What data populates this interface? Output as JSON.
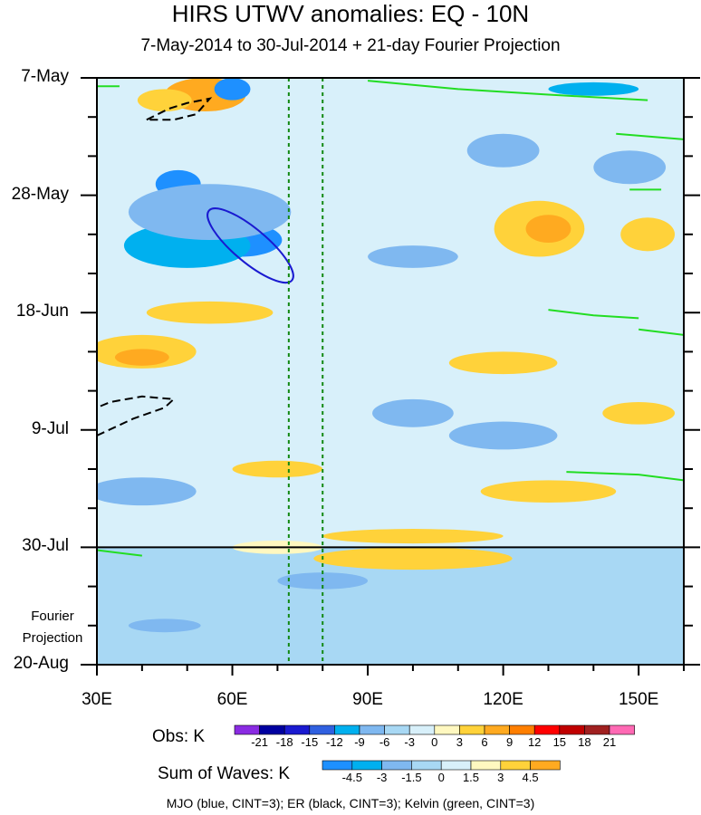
{
  "chart_data": {
    "type": "heatmap",
    "title": "HIRS UTWV anomalies: EQ - 10N",
    "subtitle": "7-May-2014 to 30-Jul-2014 + 21-day Fourier Projection",
    "x_ticks": [
      {
        "value": 30,
        "label": "30E"
      },
      {
        "value": 60,
        "label": "60E"
      },
      {
        "value": 90,
        "label": "90E"
      },
      {
        "value": 120,
        "label": "120E"
      },
      {
        "value": 150,
        "label": "150E"
      }
    ],
    "xlim": [
      30,
      160
    ],
    "y_ticks": [
      {
        "day": 0,
        "label": "7-May"
      },
      {
        "day": 21,
        "label": "28-May"
      },
      {
        "day": 42,
        "label": "18-Jun"
      },
      {
        "day": 63,
        "label": "9-Jul"
      },
      {
        "day": 84,
        "label": "30-Jul"
      },
      {
        "day": 105,
        "label": "20-Aug"
      }
    ],
    "ylim_days": [
      0,
      105
    ],
    "observation_end_day": 84,
    "fourier_projection_label": [
      "Fourier",
      "Projection"
    ],
    "reference_longitudes": [
      72.5,
      80
    ],
    "obs_colorbar": {
      "title": "Obs: K",
      "levels": [
        "-21",
        "-18",
        "-15",
        "-12",
        "-9",
        "-6",
        "-3",
        "0",
        "3",
        "6",
        "9",
        "12",
        "15",
        "18",
        "21"
      ],
      "colors": [
        "#8a2be2",
        "#0000a0",
        "#1a1ad0",
        "#3060e0",
        "#00b0ef",
        "#7fb8f0",
        "#a8d8f4",
        "#d8f0fa",
        "#fff8c0",
        "#ffd23a",
        "#ffaa20",
        "#ff7f00",
        "#ff0000",
        "#c00000",
        "#a02020",
        "#ff69b4"
      ]
    },
    "wave_colorbar": {
      "title": "Sum of Waves: K",
      "levels": [
        "-4.5",
        "-3",
        "-1.5",
        "0",
        "1.5",
        "3",
        "4.5"
      ],
      "colors": [
        "#1e90ff",
        "#00b0ef",
        "#7fb8f0",
        "#a8d8f4",
        "#d8f0fa",
        "#fff8c0",
        "#ffd23a",
        "#ffaa20"
      ]
    },
    "contour_legend": "MJO (blue, CINT=3); ER (black, CINT=3); Kelvin (green, CINT=3)",
    "anomaly_blobs": [
      {
        "lon": 54,
        "day": 3,
        "rlon": 9,
        "rday": 3,
        "level": "4.5"
      },
      {
        "lon": 45,
        "day": 4,
        "rlon": 6,
        "rday": 2,
        "level": "3"
      },
      {
        "lon": 60,
        "day": 2,
        "rlon": 4,
        "rday": 2,
        "level": "6"
      },
      {
        "lon": 140,
        "day": 2,
        "rlon": 10,
        "rday": 1.2,
        "level": "-3"
      },
      {
        "lon": 48,
        "day": 19,
        "rlon": 5,
        "rday": 2.5,
        "level": "-4.5"
      },
      {
        "lon": 62,
        "day": 29,
        "rlon": 9,
        "rday": 3,
        "level": "-4.5"
      },
      {
        "lon": 50,
        "day": 30,
        "rlon": 14,
        "rday": 4,
        "level": "-3"
      },
      {
        "lon": 55,
        "day": 24,
        "rlon": 18,
        "rday": 5,
        "level": "-1.5"
      },
      {
        "lon": 128,
        "day": 27,
        "rlon": 10,
        "rday": 5,
        "level": "3"
      },
      {
        "lon": 130,
        "day": 27,
        "rlon": 5,
        "rday": 2.5,
        "level": "4.5"
      },
      {
        "lon": 152,
        "day": 28,
        "rlon": 6,
        "rday": 3,
        "level": "3"
      },
      {
        "lon": 120,
        "day": 13,
        "rlon": 8,
        "rday": 3,
        "level": "-1.5"
      },
      {
        "lon": 148,
        "day": 16,
        "rlon": 8,
        "rday": 3,
        "level": "-1.5"
      },
      {
        "lon": 100,
        "day": 32,
        "rlon": 10,
        "rday": 2,
        "level": "-1.5"
      },
      {
        "lon": 40,
        "day": 49,
        "rlon": 12,
        "rday": 3,
        "level": "3"
      },
      {
        "lon": 40,
        "day": 50,
        "rlon": 6,
        "rday": 1.5,
        "level": "4.5"
      },
      {
        "lon": 55,
        "day": 42,
        "rlon": 14,
        "rday": 2,
        "level": "3"
      },
      {
        "lon": 120,
        "day": 51,
        "rlon": 12,
        "rday": 2,
        "level": "3"
      },
      {
        "lon": 150,
        "day": 60,
        "rlon": 8,
        "rday": 2,
        "level": "3"
      },
      {
        "lon": 100,
        "day": 60,
        "rlon": 9,
        "rday": 2.5,
        "level": "-1.5"
      },
      {
        "lon": 120,
        "day": 64,
        "rlon": 12,
        "rday": 2.5,
        "level": "-1.5"
      },
      {
        "lon": 35,
        "day": 74,
        "rlon": 6,
        "rday": 1.5,
        "level": "-4.5"
      },
      {
        "lon": 40,
        "day": 74,
        "rlon": 12,
        "rday": 2.5,
        "level": "-1.5"
      },
      {
        "lon": 70,
        "day": 70,
        "rlon": 10,
        "rday": 1.5,
        "level": "3"
      },
      {
        "lon": 130,
        "day": 74,
        "rlon": 15,
        "rday": 2,
        "level": "3"
      },
      {
        "lon": 100,
        "day": 82,
        "rlon": 20,
        "rday": 1.3,
        "level": "3"
      },
      {
        "lon": 70,
        "day": 84,
        "rlon": 10,
        "rday": 1.2,
        "level": "1.5"
      },
      {
        "lon": 100,
        "day": 86,
        "rlon": 22,
        "rday": 2,
        "level": "3"
      },
      {
        "lon": 80,
        "day": 90,
        "rlon": 10,
        "rday": 1.5,
        "level": "-1.5"
      },
      {
        "lon": 45,
        "day": 98,
        "rlon": 8,
        "rday": 1.2,
        "level": "-1.5"
      }
    ],
    "mjo_contours": [
      {
        "lon": 64,
        "day": 30,
        "rlon": 12,
        "rday": 3,
        "angle": 40
      }
    ],
    "er_contours": [
      {
        "points": [
          [
            41,
            7.5
          ],
          [
            46,
            5.5
          ],
          [
            50,
            4.5
          ],
          [
            55,
            3.7
          ],
          [
            52,
            6.5
          ],
          [
            47,
            7.5
          ],
          [
            41,
            7.5
          ]
        ]
      },
      {
        "points": [
          [
            30,
            64
          ],
          [
            38,
            61
          ],
          [
            45,
            59
          ],
          [
            47,
            57.5
          ],
          [
            40,
            57
          ],
          [
            33,
            58
          ],
          [
            30,
            59
          ]
        ]
      }
    ],
    "kelvin_contours": [
      {
        "points": [
          [
            30,
            1.5
          ],
          [
            35,
            1.5
          ]
        ]
      },
      {
        "points": [
          [
            90,
            0.5
          ],
          [
            110,
            2
          ],
          [
            130,
            3
          ],
          [
            152,
            4
          ]
        ]
      },
      {
        "points": [
          [
            145,
            10
          ],
          [
            160,
            11
          ]
        ]
      },
      {
        "points": [
          [
            148,
            20
          ],
          [
            155,
            20
          ]
        ]
      },
      {
        "points": [
          [
            130,
            41.5
          ],
          [
            140,
            42.5
          ],
          [
            150,
            43
          ]
        ]
      },
      {
        "points": [
          [
            150,
            45
          ],
          [
            160,
            46
          ]
        ]
      },
      {
        "points": [
          [
            134,
            70.5
          ],
          [
            150,
            71
          ],
          [
            160,
            72
          ]
        ]
      },
      {
        "points": [
          [
            30,
            84.5
          ],
          [
            40,
            85.5
          ]
        ]
      }
    ]
  }
}
